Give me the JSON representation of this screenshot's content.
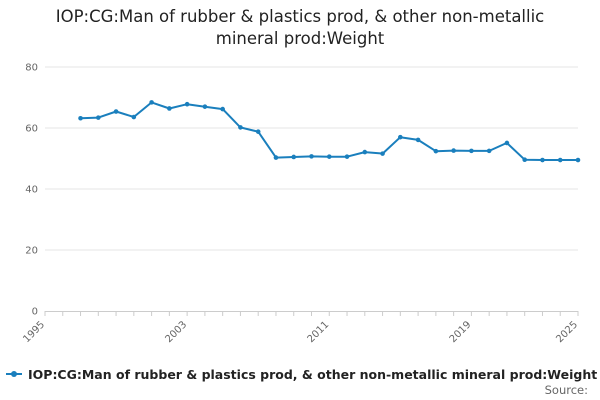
{
  "chart_data": {
    "type": "line",
    "title": "IOP:CG:Man of rubber & plastics prod, & other non-metallic mineral prod:Weight",
    "xlabel": "",
    "ylabel": "",
    "x_tick_labels": [
      "1995",
      "2003",
      "2011",
      "2019",
      "2025"
    ],
    "y_tick_labels": [
      "0",
      "20",
      "40",
      "60",
      "80"
    ],
    "xlim": [
      1995,
      2025
    ],
    "ylim": [
      0,
      80
    ],
    "grid": "horizontal",
    "legend_position": "bottom",
    "series": [
      {
        "name": "IOP:CG:Man of rubber & plastics prod, & other non-metallic mineral prod:Weight",
        "color": "#1a7fbd",
        "x": [
          1997,
          1998,
          1999,
          2000,
          2001,
          2002,
          2003,
          2004,
          2005,
          2006,
          2007,
          2008,
          2009,
          2010,
          2011,
          2012,
          2013,
          2014,
          2015,
          2016,
          2017,
          2018,
          2019,
          2020,
          2021,
          2022,
          2023,
          2024,
          2025
        ],
        "values": [
          63.2,
          63.4,
          65.4,
          63.6,
          68.4,
          66.4,
          67.8,
          67.0,
          66.2,
          60.2,
          58.8,
          50.3,
          50.5,
          50.7,
          50.6,
          50.6,
          52.1,
          51.6,
          57.0,
          56.1,
          52.4,
          52.6,
          52.5,
          52.5,
          55.1,
          49.6,
          49.5,
          49.5,
          49.5
        ]
      }
    ]
  },
  "legend": {
    "label": "IOP:CG:Man of rubber & plastics prod, & other non-metallic mineral prod:Weight"
  },
  "source": {
    "label": "Source:"
  }
}
